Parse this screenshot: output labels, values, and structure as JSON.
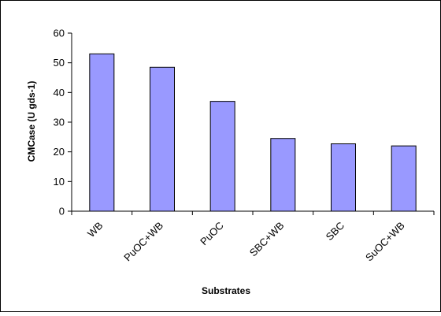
{
  "chart_data": {
    "type": "bar",
    "title": "",
    "xlabel": "Substrates",
    "ylabel": "CMCase (U gds-1)",
    "categories": [
      "WB",
      "PuOC+WB",
      "PuOC",
      "SBC+WB",
      "SBC",
      "SuOC+WB"
    ],
    "values": [
      53,
      48.5,
      37,
      24.5,
      22.7,
      22
    ],
    "ylim": [
      0,
      60
    ],
    "yticks": [
      0,
      10,
      20,
      30,
      40,
      50,
      60
    ],
    "grid": false,
    "legend": "none",
    "colors": {
      "bar_fill": "#9999ff",
      "bar_stroke": "#000000",
      "axis": "#000000",
      "frame": "#000000"
    }
  }
}
